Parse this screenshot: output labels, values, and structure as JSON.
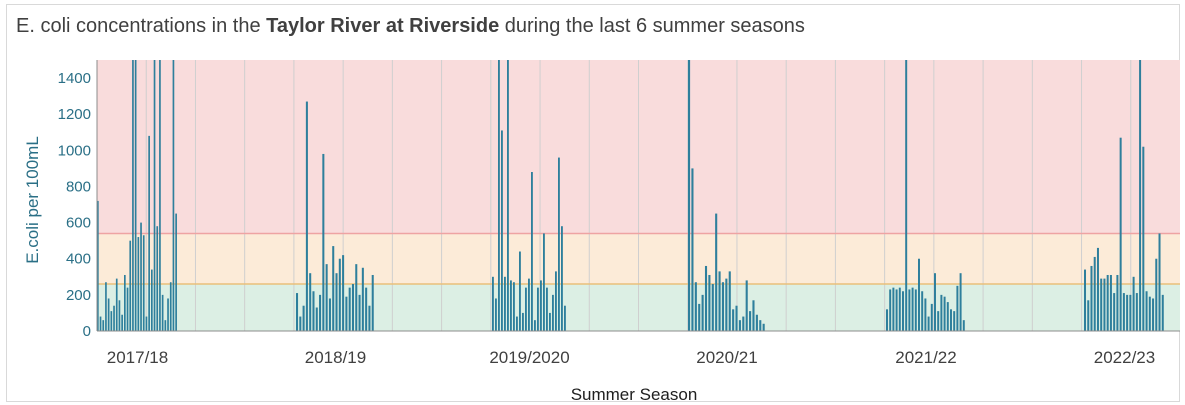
{
  "title": {
    "prefix": "E. coli concentrations in the ",
    "bold": "Taylor River at Riverside",
    "suffix": " during the last 6 summer seasons"
  },
  "colors": {
    "bar": "#2e7f9c",
    "band_green": "#dcefe4",
    "band_orange": "#fcebd8",
    "band_red": "#f9dcdc",
    "line_orange": "#e9c07a",
    "line_red": "#eea3a3",
    "grid": "#cfcfcf"
  },
  "chart_data": {
    "type": "bar",
    "title": "E. coli concentrations in the Taylor River at Riverside during the last 6 summer seasons",
    "xlabel": "Summer Season",
    "ylabel": "E.coli per 100mL",
    "ylim": [
      0,
      1500
    ],
    "yticks": [
      0,
      200,
      400,
      600,
      800,
      1000,
      1200,
      1400
    ],
    "thresholds": [
      {
        "value": 260,
        "color": "#e9c07a"
      },
      {
        "value": 540,
        "color": "#eea3a3"
      }
    ],
    "bands": [
      {
        "from": 0,
        "to": 260,
        "color": "#dcefe4"
      },
      {
        "from": 260,
        "to": 540,
        "color": "#fcebd8"
      },
      {
        "from": 540,
        "to": 1500,
        "color": "#f9dcdc"
      }
    ],
    "grid": true,
    "seasons": [
      {
        "label": "2017/18",
        "values": [
          720,
          80,
          60,
          270,
          180,
          110,
          140,
          290,
          170,
          90,
          310,
          240,
          500,
          1500,
          1500,
          520,
          600,
          530,
          80,
          1080,
          340,
          1500,
          580,
          1500,
          200,
          60,
          180,
          270,
          1500,
          650
        ]
      },
      {
        "label": "2018/19",
        "values": [
          210,
          80,
          140,
          1270,
          320,
          220,
          130,
          200,
          980,
          370,
          180,
          470,
          320,
          400,
          420,
          190,
          240,
          260,
          370,
          200,
          350,
          240,
          140,
          310
        ]
      },
      {
        "label": "2019/2020",
        "values": [
          300,
          180,
          1500,
          1110,
          300,
          1500,
          280,
          270,
          80,
          440,
          100,
          240,
          290,
          880,
          60,
          240,
          280,
          540,
          240,
          100,
          200,
          330,
          960,
          580,
          140
        ]
      },
      {
        "label": "2020/21",
        "values": [
          1500,
          900,
          270,
          150,
          200,
          360,
          310,
          260,
          650,
          330,
          270,
          290,
          330,
          120,
          140,
          60,
          80,
          280,
          110,
          170,
          90,
          60,
          40
        ]
      },
      {
        "label": "2021/22",
        "values": [
          120,
          230,
          240,
          230,
          240,
          220,
          1500,
          230,
          240,
          230,
          400,
          220,
          180,
          80,
          150,
          320,
          110,
          200,
          190,
          160,
          120,
          110,
          250,
          320,
          60
        ]
      },
      {
        "label": "2022/23",
        "values": [
          340,
          170,
          360,
          410,
          460,
          290,
          290,
          310,
          310,
          210,
          310,
          1070,
          210,
          200,
          200,
          300,
          210,
          1500,
          1020,
          220,
          190,
          180,
          400,
          540,
          200
        ]
      }
    ]
  }
}
